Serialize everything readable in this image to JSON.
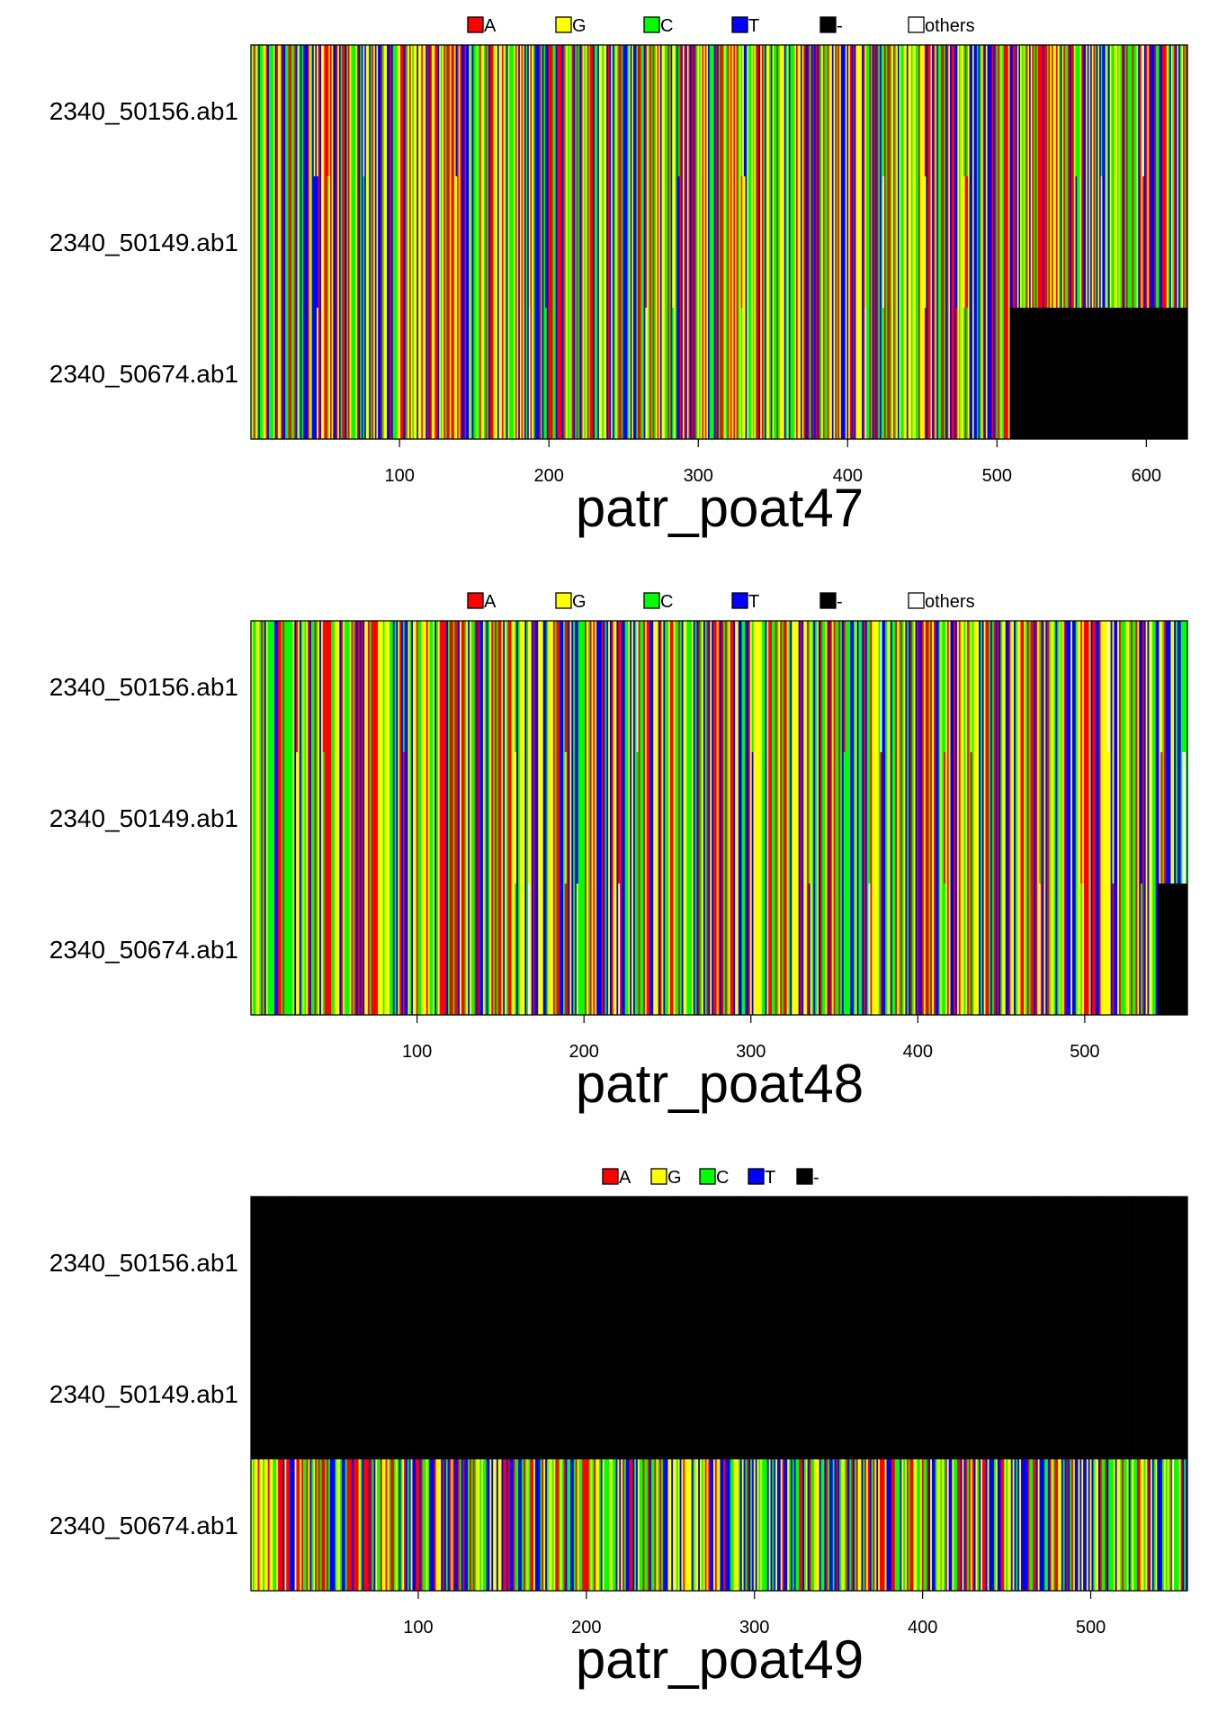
{
  "colors": {
    "A": "#ff0000",
    "G": "#ffff00",
    "C": "#00ff00",
    "T": "#0000ff",
    "-": "#000000",
    "others": "#ffffff"
  },
  "chart_data": [
    {
      "type": "heatmap",
      "title": "patr_poat47",
      "legend": [
        "A",
        "G",
        "C",
        "T",
        "-",
        "others"
      ],
      "legend_placement": "top",
      "rows": [
        "2340_50156.ab1",
        "2340_50149.ab1",
        "2340_50674.ab1"
      ],
      "xlim": [
        1,
        627
      ],
      "xticks": [
        100,
        200,
        300,
        400,
        500,
        600
      ],
      "gap_regions": [
        {
          "row": "2340_50674.ab1",
          "from": 509,
          "to": 627
        }
      ],
      "seed": 47
    },
    {
      "type": "heatmap",
      "title": "patr_poat48",
      "legend": [
        "A",
        "G",
        "C",
        "T",
        "-",
        "others"
      ],
      "legend_placement": "top",
      "rows": [
        "2340_50156.ab1",
        "2340_50149.ab1",
        "2340_50674.ab1"
      ],
      "xlim": [
        1,
        561
      ],
      "xticks": [
        100,
        200,
        300,
        400,
        500
      ],
      "gap_regions": [
        {
          "row": "2340_50674.ab1",
          "from": 544,
          "to": 561
        }
      ],
      "seed": 48
    },
    {
      "type": "heatmap",
      "title": "patr_poat49",
      "legend": [
        "A",
        "G",
        "C",
        "T",
        "-"
      ],
      "legend_placement": "top",
      "rows": [
        "2340_50156.ab1",
        "2340_50149.ab1",
        "2340_50674.ab1"
      ],
      "xlim": [
        1,
        557
      ],
      "xticks": [
        100,
        200,
        300,
        400,
        500
      ],
      "gap_regions": [
        {
          "row": "2340_50156.ab1",
          "from": 1,
          "to": 557
        },
        {
          "row": "2340_50149.ab1",
          "from": 1,
          "to": 557
        }
      ],
      "seed": 49
    }
  ]
}
